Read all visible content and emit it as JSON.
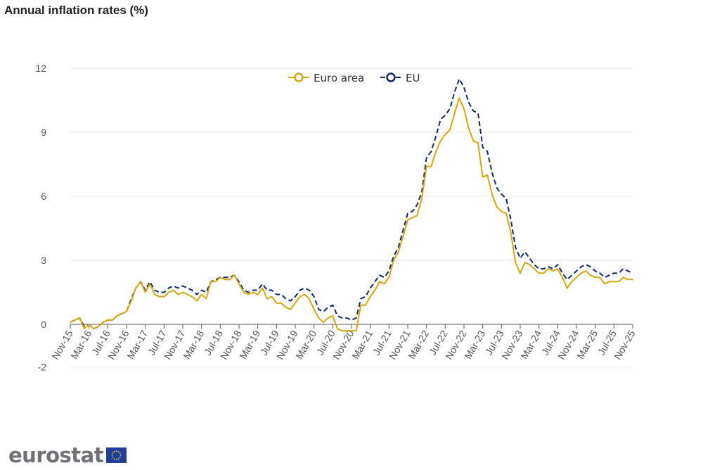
{
  "chart_data": {
    "type": "line",
    "title": "Annual inflation rates (%)",
    "xlabel": "",
    "ylabel": "",
    "ylim": [
      -2,
      12
    ],
    "yticks": [
      -2,
      0,
      3,
      6,
      9,
      12
    ],
    "grid": true,
    "legend_position": "top-center",
    "x_start": "Nov-15",
    "x_tick_labels": [
      "Nov-15",
      "Mar-16",
      "Jul-16",
      "Nov-16",
      "Mar-17",
      "Jul-17",
      "Nov-17",
      "Mar-18",
      "Jul-18",
      "Nov-18",
      "Mar-19",
      "Jul-19",
      "Nov-19",
      "Mar-20",
      "Jul-20",
      "Nov-20",
      "Mar-21",
      "Jul-21",
      "Nov-21",
      "Mar-22",
      "Jul-22",
      "Nov-22",
      "Mar-23",
      "Jul-23",
      "Nov-23",
      "Mar-24",
      "Jul-24",
      "Nov-24",
      "Mar-25",
      "Jul-25",
      "Nov-25"
    ],
    "series": [
      {
        "name": "Euro area",
        "color": "#d4a80a",
        "style": "solid",
        "values": [
          0.1,
          0.2,
          0.3,
          -0.2,
          0.0,
          -0.2,
          -0.1,
          0.1,
          0.2,
          0.2,
          0.4,
          0.5,
          0.6,
          1.1,
          1.7,
          2.0,
          1.5,
          1.9,
          1.4,
          1.3,
          1.3,
          1.5,
          1.6,
          1.4,
          1.5,
          1.4,
          1.3,
          1.1,
          1.4,
          1.2,
          2.0,
          2.0,
          2.2,
          2.1,
          2.1,
          2.3,
          1.9,
          1.5,
          1.4,
          1.5,
          1.4,
          1.7,
          1.2,
          1.3,
          1.0,
          1.0,
          0.8,
          0.7,
          1.0,
          1.3,
          1.4,
          1.2,
          0.7,
          0.3,
          0.1,
          0.3,
          0.4,
          -0.2,
          -0.3,
          -0.3,
          -0.3,
          -0.3,
          0.9,
          0.9,
          1.3,
          1.6,
          2.0,
          1.9,
          2.2,
          3.0,
          3.4,
          4.1,
          4.9,
          5.0,
          5.1,
          5.9,
          7.4,
          7.4,
          8.1,
          8.6,
          8.9,
          9.1,
          9.9,
          10.6,
          10.1,
          9.2,
          8.6,
          8.5,
          6.9,
          7.0,
          6.1,
          5.5,
          5.3,
          5.2,
          4.3,
          2.9,
          2.4,
          2.9,
          2.8,
          2.6,
          2.4,
          2.4,
          2.6,
          2.5,
          2.6,
          2.2,
          1.7,
          2.0,
          2.2,
          2.4,
          2.5,
          2.3,
          2.2,
          2.2,
          1.9,
          2.0,
          2.0,
          2.0,
          2.2,
          2.1,
          2.1
        ]
      },
      {
        "name": "EU",
        "color": "#0e2a6e",
        "style": "dashed",
        "values": [
          0.1,
          0.2,
          0.3,
          -0.1,
          0.0,
          -0.2,
          -0.1,
          0.1,
          0.2,
          0.2,
          0.4,
          0.5,
          0.6,
          1.2,
          1.7,
          2.0,
          1.6,
          2.0,
          1.6,
          1.5,
          1.5,
          1.7,
          1.8,
          1.7,
          1.8,
          1.7,
          1.6,
          1.4,
          1.6,
          1.5,
          2.0,
          2.1,
          2.2,
          2.2,
          2.2,
          2.3,
          2.0,
          1.6,
          1.5,
          1.6,
          1.6,
          1.9,
          1.6,
          1.6,
          1.4,
          1.4,
          1.2,
          1.1,
          1.3,
          1.6,
          1.7,
          1.6,
          1.3,
          0.7,
          0.6,
          0.8,
          0.9,
          0.4,
          0.3,
          0.3,
          0.2,
          0.3,
          1.2,
          1.3,
          1.7,
          2.0,
          2.3,
          2.2,
          2.5,
          3.2,
          3.6,
          4.4,
          5.2,
          5.3,
          5.6,
          6.2,
          7.8,
          8.1,
          8.8,
          9.6,
          9.8,
          10.1,
          10.9,
          11.5,
          11.1,
          10.4,
          10.0,
          9.9,
          8.3,
          8.1,
          7.1,
          6.4,
          6.1,
          5.9,
          4.9,
          3.6,
          3.1,
          3.4,
          3.1,
          2.8,
          2.6,
          2.6,
          2.7,
          2.6,
          2.8,
          2.4,
          2.1,
          2.3,
          2.5,
          2.7,
          2.8,
          2.7,
          2.5,
          2.4,
          2.2,
          2.3,
          2.4,
          2.4,
          2.6,
          2.5,
          2.4
        ]
      }
    ]
  },
  "branding": {
    "logo_text": "eurostat"
  }
}
